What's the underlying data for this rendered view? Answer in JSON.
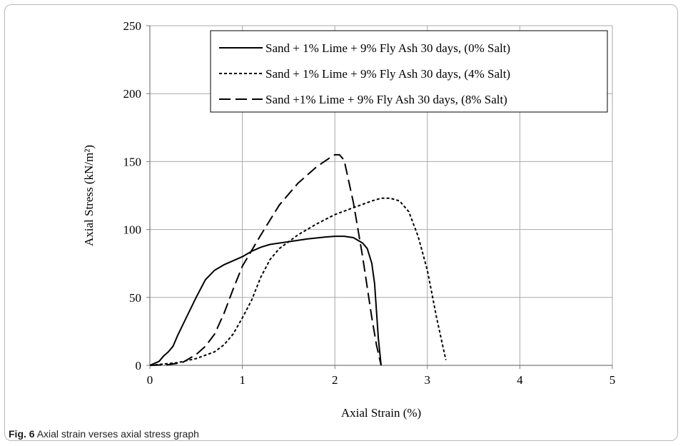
{
  "caption": {
    "label": "Fig. 6",
    "text": "Axial strain verses axial stress graph"
  },
  "chart_data": {
    "type": "line",
    "xlabel": "Axial Strain (%)",
    "ylabel": "Axial Stress (kN/m²)",
    "xlim": [
      0,
      5
    ],
    "ylim": [
      0,
      250
    ],
    "xticks": [
      0,
      1,
      2,
      3,
      4,
      5
    ],
    "yticks": [
      0,
      50,
      100,
      150,
      200,
      250
    ],
    "grid": true,
    "legend_position": "top-right",
    "series": [
      {
        "name": "Sand + 1% Lime + 9% Fly Ash 30 days, (0% Salt)",
        "line_style": "solid",
        "x": [
          0,
          0.1,
          0.15,
          0.2,
          0.25,
          0.3,
          0.4,
          0.5,
          0.6,
          0.7,
          0.8,
          0.9,
          1.0,
          1.1,
          1.2,
          1.3,
          1.5,
          1.7,
          1.9,
          2.0,
          2.1,
          2.2,
          2.3,
          2.35,
          2.4,
          2.43,
          2.45,
          2.47,
          2.5
        ],
        "y": [
          0,
          3,
          7,
          10,
          14,
          22,
          36,
          50,
          63,
          70,
          74,
          77,
          80,
          84,
          87,
          89,
          91,
          93,
          94.5,
          95,
          95,
          94,
          90,
          86,
          75,
          60,
          40,
          20,
          0
        ]
      },
      {
        "name": "Sand + 1% Lime + 9% Fly Ash 30 days, (4% Salt)",
        "line_style": "dotted",
        "x": [
          0,
          0.3,
          0.5,
          0.7,
          0.8,
          0.9,
          1.0,
          1.1,
          1.2,
          1.3,
          1.4,
          1.6,
          1.8,
          2.0,
          2.2,
          2.4,
          2.5,
          2.6,
          2.7,
          2.8,
          2.9,
          3.0,
          3.1,
          3.2
        ],
        "y": [
          0,
          2,
          5,
          10,
          15,
          23,
          35,
          48,
          65,
          78,
          86,
          96,
          104,
          111,
          116,
          121,
          123,
          123,
          121,
          113,
          95,
          70,
          35,
          4
        ]
      },
      {
        "name": "Sand +1% Lime + 9% Fly Ash 30 days, (8% Salt)",
        "line_style": "dashed",
        "x": [
          0,
          0.2,
          0.35,
          0.5,
          0.6,
          0.7,
          0.8,
          0.9,
          1.0,
          1.2,
          1.4,
          1.6,
          1.8,
          1.95,
          2.0,
          2.05,
          2.1,
          2.2,
          2.3,
          2.4,
          2.45,
          2.5
        ],
        "y": [
          0,
          0.5,
          2,
          8,
          14,
          23,
          38,
          56,
          73,
          96,
          118,
          134,
          146,
          153,
          155,
          155,
          151,
          120,
          80,
          35,
          15,
          0
        ]
      }
    ]
  }
}
